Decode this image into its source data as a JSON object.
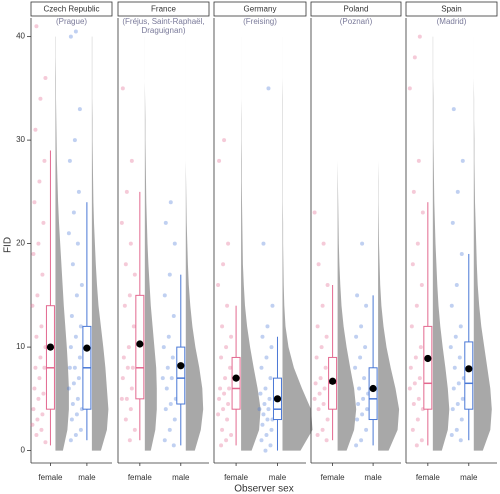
{
  "chart_data": {
    "type": "raincloud",
    "y_label": "FID",
    "x_label": "Observer sex",
    "ylim": [
      -1.2,
      41.8
    ],
    "yticks": [
      0,
      10,
      20,
      30,
      40
    ],
    "colors": [
      "#e3688f",
      "#4a78d6"
    ],
    "density_y": [
      0,
      2,
      4,
      6,
      8,
      10,
      12,
      14,
      16,
      18,
      20,
      22,
      24,
      26,
      28,
      30,
      32,
      34,
      36,
      38,
      40
    ],
    "panels": [
      {
        "title": "Czech Republic",
        "subtitle": [
          "(Prague)"
        ],
        "categories": [
          "female",
          "male"
        ],
        "groups": [
          {
            "q1": 4,
            "median": 8,
            "q3": 14,
            "whisker_low": 0.5,
            "whisker_high": 29,
            "mean": 10,
            "points": [
              0.8,
              1.5,
              2,
              2.5,
              3,
              3.5,
              4,
              5,
              5.5,
              6,
              7,
              8,
              8,
              9,
              10,
              11,
              12,
              14,
              15,
              17,
              19,
              20,
              22,
              24,
              26,
              28,
              31,
              34,
              36,
              41
            ],
            "density": [
              0.25,
              0.4,
              0.45,
              0.45,
              0.42,
              0.38,
              0.33,
              0.28,
              0.24,
              0.2,
              0.16,
              0.12,
              0.09,
              0.07,
              0.05,
              0.04,
              0.03,
              0.02,
              0.02,
              0.01,
              0.01
            ]
          },
          {
            "q1": 4,
            "median": 8,
            "q3": 12,
            "whisker_low": 1,
            "whisker_high": 24,
            "mean": 9.9,
            "points": [
              1,
              1.5,
              2,
              3,
              3.5,
              4,
              4.5,
              5,
              6,
              6.5,
              7,
              8,
              8,
              9,
              10,
              11,
              12,
              13,
              15,
              16,
              18,
              20,
              21,
              23,
              25,
              28,
              30,
              33,
              40,
              40.5
            ],
            "density": [
              0.3,
              0.5,
              0.55,
              0.5,
              0.45,
              0.38,
              0.3,
              0.22,
              0.17,
              0.13,
              0.1,
              0.07,
              0.05,
              0.04,
              0.03,
              0.02,
              0.02,
              0.01,
              0.01,
              0.01,
              0.01
            ]
          }
        ]
      },
      {
        "title": "France",
        "subtitle": [
          "(Fréjus, Saint-Raphaël,",
          "Draguignan)"
        ],
        "categories": [
          "female",
          "male"
        ],
        "groups": [
          {
            "q1": 5,
            "median": 8,
            "q3": 15,
            "whisker_low": 1,
            "whisker_high": 25,
            "mean": 10.3,
            "points": [
              1,
              2,
              3,
              4,
              5,
              5,
              6,
              7,
              8,
              8,
              9,
              10,
              12,
              14,
              15,
              17,
              18,
              20,
              22,
              25,
              28,
              35
            ],
            "density": [
              0.2,
              0.35,
              0.4,
              0.4,
              0.38,
              0.32,
              0.26,
              0.2,
              0.16,
              0.12,
              0.09,
              0.07,
              0.05,
              0.04,
              0.03,
              0.02,
              0.02,
              0.01,
              0,
              0,
              0
            ]
          },
          {
            "q1": 4.5,
            "median": 7,
            "q3": 10,
            "whisker_low": 0.5,
            "whisker_high": 17,
            "mean": 8.2,
            "points": [
              0.5,
              1,
              2,
              3,
              4,
              4.5,
              5,
              6,
              7,
              7,
              8,
              9,
              10,
              11,
              13,
              15,
              17,
              20,
              22,
              24
            ],
            "density": [
              0.3,
              0.5,
              0.58,
              0.55,
              0.45,
              0.32,
              0.22,
              0.15,
              0.1,
              0.07,
              0.05,
              0.03,
              0.02,
              0.01,
              0,
              0,
              0,
              0,
              0,
              0,
              0
            ]
          }
        ]
      },
      {
        "title": "Germany",
        "subtitle": [
          "(Freising)"
        ],
        "categories": [
          "female",
          "male"
        ],
        "groups": [
          {
            "q1": 4,
            "median": 6,
            "q3": 9,
            "whisker_low": 0.5,
            "whisker_high": 14,
            "mean": 7,
            "points": [
              0.5,
              1,
              1.5,
              2,
              3,
              3.5,
              4,
              4.5,
              5,
              5.5,
              6,
              6,
              7,
              8,
              9,
              10,
              11,
              12,
              14,
              16,
              18,
              20,
              28,
              30
            ],
            "density": [
              0.35,
              0.6,
              0.65,
              0.55,
              0.42,
              0.3,
              0.2,
              0.13,
              0.09,
              0.06,
              0.05,
              0.04,
              0.03,
              0.02,
              0.02,
              0.01,
              0.01,
              0,
              0,
              0,
              0
            ]
          },
          {
            "q1": 3,
            "median": 4,
            "q3": 7,
            "whisker_low": 0,
            "whisker_high": 11,
            "mean": 5,
            "points": [
              0,
              0.5,
              1,
              1.5,
              2,
              2.5,
              3,
              3,
              3.5,
              4,
              4,
              4.5,
              5,
              5.5,
              6,
              7,
              8,
              9,
              10,
              11,
              12,
              14,
              20,
              35
            ],
            "density": [
              0.6,
              1.0,
              0.95,
              0.65,
              0.38,
              0.2,
              0.1,
              0.06,
              0.04,
              0.03,
              0.02,
              0.02,
              0.01,
              0.01,
              0.01,
              0.01,
              0.01,
              0.01,
              0,
              0,
              0
            ]
          }
        ]
      },
      {
        "title": "Poland",
        "subtitle": [
          "(Poznań)"
        ],
        "categories": [
          "female",
          "male"
        ],
        "groups": [
          {
            "q1": 4,
            "median": 6.5,
            "q3": 9,
            "whisker_low": 1,
            "whisker_high": 16,
            "mean": 6.7,
            "points": [
              1,
              1.5,
              2,
              3,
              4,
              4.5,
              5,
              5.5,
              6,
              6.5,
              7,
              8,
              9,
              10,
              11,
              12,
              14,
              16,
              18,
              20,
              23
            ],
            "density": [
              0.3,
              0.55,
              0.62,
              0.55,
              0.42,
              0.3,
              0.2,
              0.13,
              0.09,
              0.06,
              0.04,
              0.03,
              0.02,
              0.01,
              0,
              0,
              0,
              0,
              0,
              0,
              0
            ]
          },
          {
            "q1": 3,
            "median": 5,
            "q3": 8,
            "whisker_low": 0.5,
            "whisker_high": 15,
            "mean": 6,
            "points": [
              0.5,
              1,
              2,
              3,
              3.5,
              4,
              4.5,
              5,
              5.5,
              6,
              7,
              8,
              9,
              10,
              11,
              12,
              14,
              15,
              20
            ],
            "density": [
              0.35,
              0.65,
              0.7,
              0.58,
              0.42,
              0.28,
              0.18,
              0.11,
              0.07,
              0.05,
              0.03,
              0.02,
              0.01,
              0.01,
              0,
              0,
              0,
              0,
              0,
              0,
              0
            ]
          }
        ]
      },
      {
        "title": "Spain",
        "subtitle": [
          "(Madrid)"
        ],
        "categories": [
          "female",
          "male"
        ],
        "groups": [
          {
            "q1": 4,
            "median": 6.5,
            "q3": 12,
            "whisker_low": 0.5,
            "whisker_high": 24,
            "mean": 8.9,
            "points": [
              0.5,
              1,
              2,
              3,
              4,
              4.5,
              5,
              6,
              6.5,
              7,
              8,
              9,
              10,
              12,
              14,
              16,
              18,
              20,
              23,
              25,
              28,
              35,
              38,
              40
            ],
            "density": [
              0.3,
              0.5,
              0.55,
              0.5,
              0.42,
              0.33,
              0.25,
              0.19,
              0.15,
              0.12,
              0.09,
              0.07,
              0.05,
              0.04,
              0.03,
              0.02,
              0.02,
              0.02,
              0.01,
              0.01,
              0.01
            ]
          },
          {
            "q1": 4,
            "median": 6.5,
            "q3": 10.5,
            "whisker_low": 1,
            "whisker_high": 19,
            "mean": 7.9,
            "points": [
              1,
              1.5,
              2,
              3,
              4,
              4.5,
              5,
              6,
              6.5,
              7,
              8,
              9,
              10,
              11,
              12,
              14,
              16,
              19,
              22,
              25,
              28,
              33
            ],
            "density": [
              0.3,
              0.55,
              0.6,
              0.55,
              0.45,
              0.35,
              0.25,
              0.18,
              0.13,
              0.1,
              0.08,
              0.06,
              0.04,
              0.03,
              0.02,
              0.02,
              0.01,
              0.01,
              0,
              0,
              0
            ]
          }
        ]
      }
    ]
  }
}
